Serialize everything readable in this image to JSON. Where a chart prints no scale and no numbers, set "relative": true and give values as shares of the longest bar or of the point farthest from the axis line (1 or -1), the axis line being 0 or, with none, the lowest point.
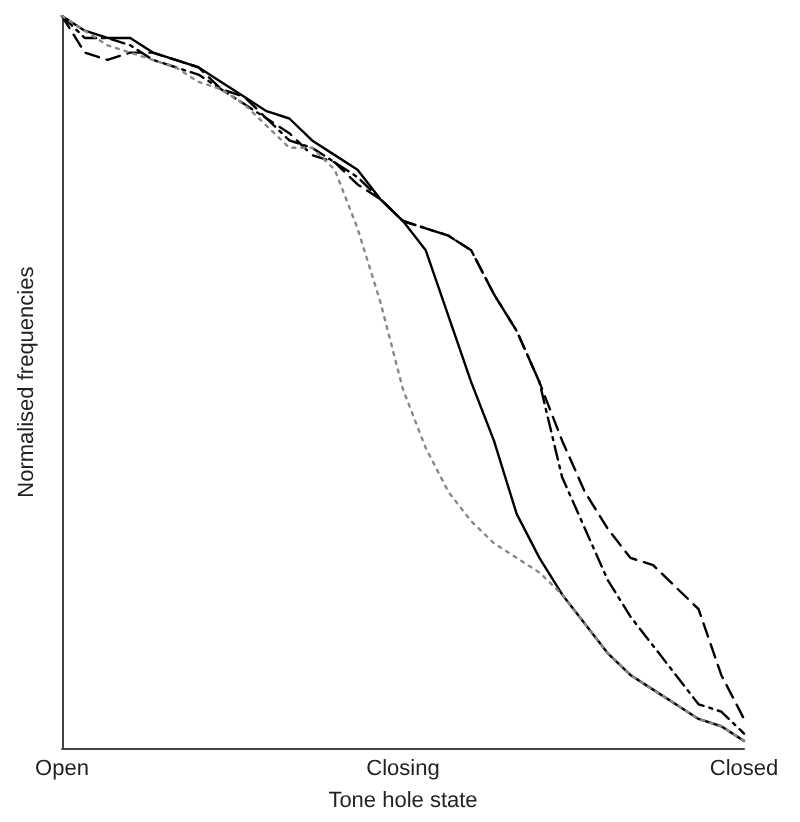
{
  "chart_data": {
    "type": "line",
    "relative": true,
    "xlabel": "Tone hole state",
    "ylabel": "Normalised frequencies",
    "grid": false,
    "marker": "none",
    "categories": [
      "Open",
      null,
      null,
      null,
      null,
      null,
      null,
      null,
      null,
      null,
      null,
      null,
      null,
      null,
      null,
      "Closing",
      null,
      null,
      null,
      null,
      null,
      null,
      null,
      null,
      null,
      null,
      null,
      null,
      null,
      null,
      "Closed"
    ],
    "series": [
      {
        "color": "#000000",
        "line_style": "solid",
        "values": [
          1.0,
          0.98,
          0.97,
          0.97,
          0.95,
          0.94,
          0.93,
          0.91,
          0.89,
          0.87,
          0.86,
          0.83,
          0.81,
          0.79,
          0.75,
          0.72,
          0.68,
          0.59,
          0.5,
          0.42,
          0.32,
          0.26,
          0.21,
          0.17,
          0.13,
          0.1,
          0.08,
          0.06,
          0.04,
          0.03,
          0.01
        ]
      },
      {
        "color": "#000000",
        "line_style": "dashed",
        "values": [
          1.0,
          0.95,
          0.94,
          0.95,
          0.95,
          0.94,
          0.93,
          0.9,
          0.89,
          0.86,
          0.84,
          0.81,
          0.8,
          0.77,
          0.75,
          0.72,
          0.71,
          0.7,
          0.68,
          0.62,
          0.57,
          0.5,
          0.42,
          0.35,
          0.3,
          0.26,
          0.25,
          0.22,
          0.19,
          0.1,
          0.04
        ]
      },
      {
        "color": "#000000",
        "line_style": "dashdot",
        "values": [
          1.0,
          0.97,
          0.97,
          0.96,
          0.94,
          0.93,
          0.92,
          0.9,
          0.88,
          0.86,
          0.83,
          0.82,
          0.8,
          0.78,
          0.75,
          0.72,
          0.71,
          0.7,
          0.68,
          0.62,
          0.57,
          0.5,
          0.37,
          0.3,
          0.23,
          0.18,
          0.14,
          0.1,
          0.06,
          0.05,
          0.02
        ]
      },
      {
        "color": "#888888",
        "line_style": "dotted",
        "values": [
          1.0,
          0.98,
          0.96,
          0.95,
          0.94,
          0.93,
          0.91,
          0.9,
          0.88,
          0.85,
          0.82,
          0.82,
          0.79,
          0.71,
          0.61,
          0.49,
          0.41,
          0.35,
          0.31,
          0.28,
          0.26,
          0.24,
          0.21,
          0.17,
          0.13,
          0.1,
          0.08,
          0.06,
          0.04,
          0.03,
          0.01
        ]
      }
    ]
  }
}
